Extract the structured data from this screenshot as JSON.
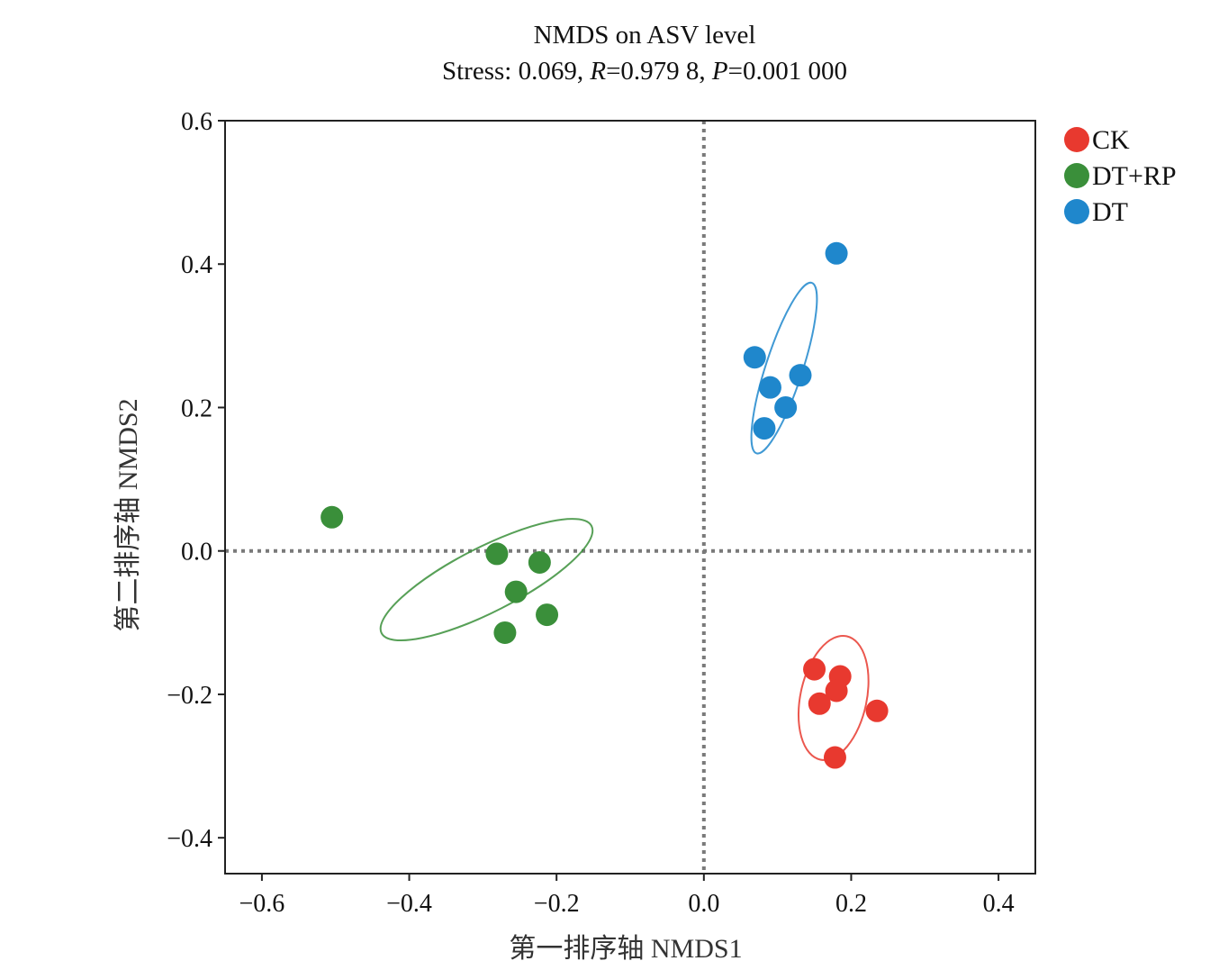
{
  "chart_data": {
    "type": "scatter",
    "title": "NMDS on ASV level",
    "subtitle": {
      "prefix": "Stress: 0.069, ",
      "r_symbol": "R",
      "r_text": "=0.979 8, ",
      "p_symbol": "P",
      "p_text": "=0.001 000"
    },
    "xlabel": "第一排序轴 NMDS1",
    "ylabel": "第二排序轴 NMDS2",
    "xlim": [
      -0.65,
      0.45
    ],
    "ylim": [
      -0.45,
      0.6
    ],
    "xticks": [
      -0.6,
      -0.4,
      -0.2,
      0.0,
      0.2,
      0.4
    ],
    "xtick_labels": [
      "−0.6",
      "−0.4",
      "−0.2",
      "0.0",
      "0.2",
      "0.4"
    ],
    "yticks": [
      -0.4,
      -0.2,
      0.0,
      0.2,
      0.4,
      0.6
    ],
    "ytick_labels": [
      "−0.4",
      "−0.2",
      "0.0",
      "0.2",
      "0.4",
      "0.6"
    ],
    "reference_lines": {
      "x": 0.0,
      "y": 0.0,
      "style": "dotted"
    },
    "legend_position": "outside-top-right",
    "series": [
      {
        "name": "CK",
        "color": "#e8392f",
        "points": [
          [
            0.15,
            -0.165
          ],
          [
            0.185,
            -0.175
          ],
          [
            0.18,
            -0.195
          ],
          [
            0.157,
            -0.213
          ],
          [
            0.235,
            -0.223
          ],
          [
            0.178,
            -0.288
          ]
        ],
        "ellipse": {
          "cx": 0.176,
          "cy": -0.205,
          "rx": 0.045,
          "ry": 0.088,
          "angle_deg": 12
        }
      },
      {
        "name": "DT+RP",
        "color": "#3a8f3a",
        "points": [
          [
            -0.505,
            0.047
          ],
          [
            -0.281,
            -0.004
          ],
          [
            -0.223,
            -0.016
          ],
          [
            -0.255,
            -0.057
          ],
          [
            -0.213,
            -0.089
          ],
          [
            -0.27,
            -0.114
          ]
        ],
        "ellipse": {
          "cx": -0.295,
          "cy": -0.04,
          "rx": 0.16,
          "ry": 0.045,
          "angle_deg": -27
        }
      },
      {
        "name": "DT",
        "color": "#1f87cc",
        "points": [
          [
            0.18,
            0.415
          ],
          [
            0.069,
            0.27
          ],
          [
            0.131,
            0.245
          ],
          [
            0.09,
            0.228
          ],
          [
            0.111,
            0.2
          ],
          [
            0.082,
            0.171
          ]
        ],
        "ellipse": {
          "cx": 0.109,
          "cy": 0.255,
          "rx": 0.025,
          "ry": 0.125,
          "angle_deg": 18
        }
      }
    ]
  }
}
